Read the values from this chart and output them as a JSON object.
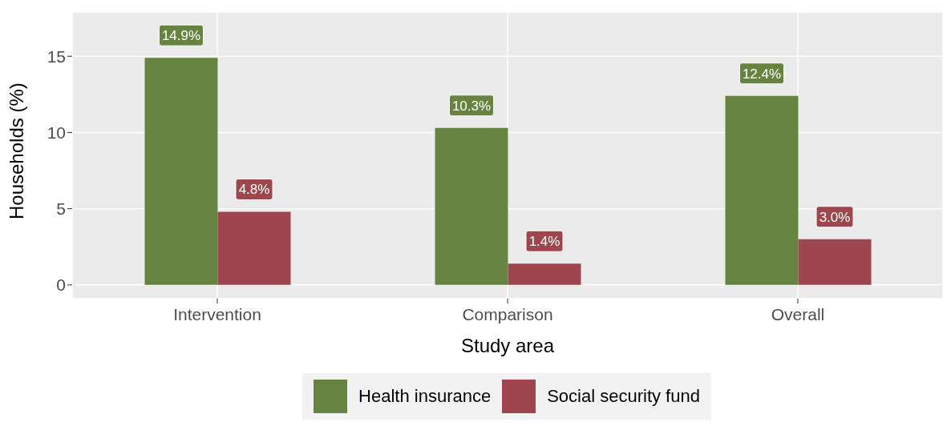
{
  "chart_data": {
    "type": "bar",
    "xlabel": "Study area",
    "ylabel": "Households (%)",
    "categories": [
      "Intervention",
      "Comparison",
      "Overall"
    ],
    "series": [
      {
        "name": "Health insurance",
        "color": "#66843f",
        "values": [
          14.9,
          10.3,
          12.4
        ],
        "value_labels": [
          "14.9%",
          "10.3%",
          "12.4%"
        ]
      },
      {
        "name": "Social security fund",
        "color": "#9e464e",
        "values": [
          4.8,
          1.4,
          3.0
        ],
        "value_labels": [
          "4.8%",
          "1.4%",
          "3.0%"
        ]
      }
    ],
    "ylim": [
      -0.9,
      17.9
    ],
    "yticks": [
      0,
      5,
      10,
      15
    ],
    "grid": true,
    "legend": "bottom"
  }
}
